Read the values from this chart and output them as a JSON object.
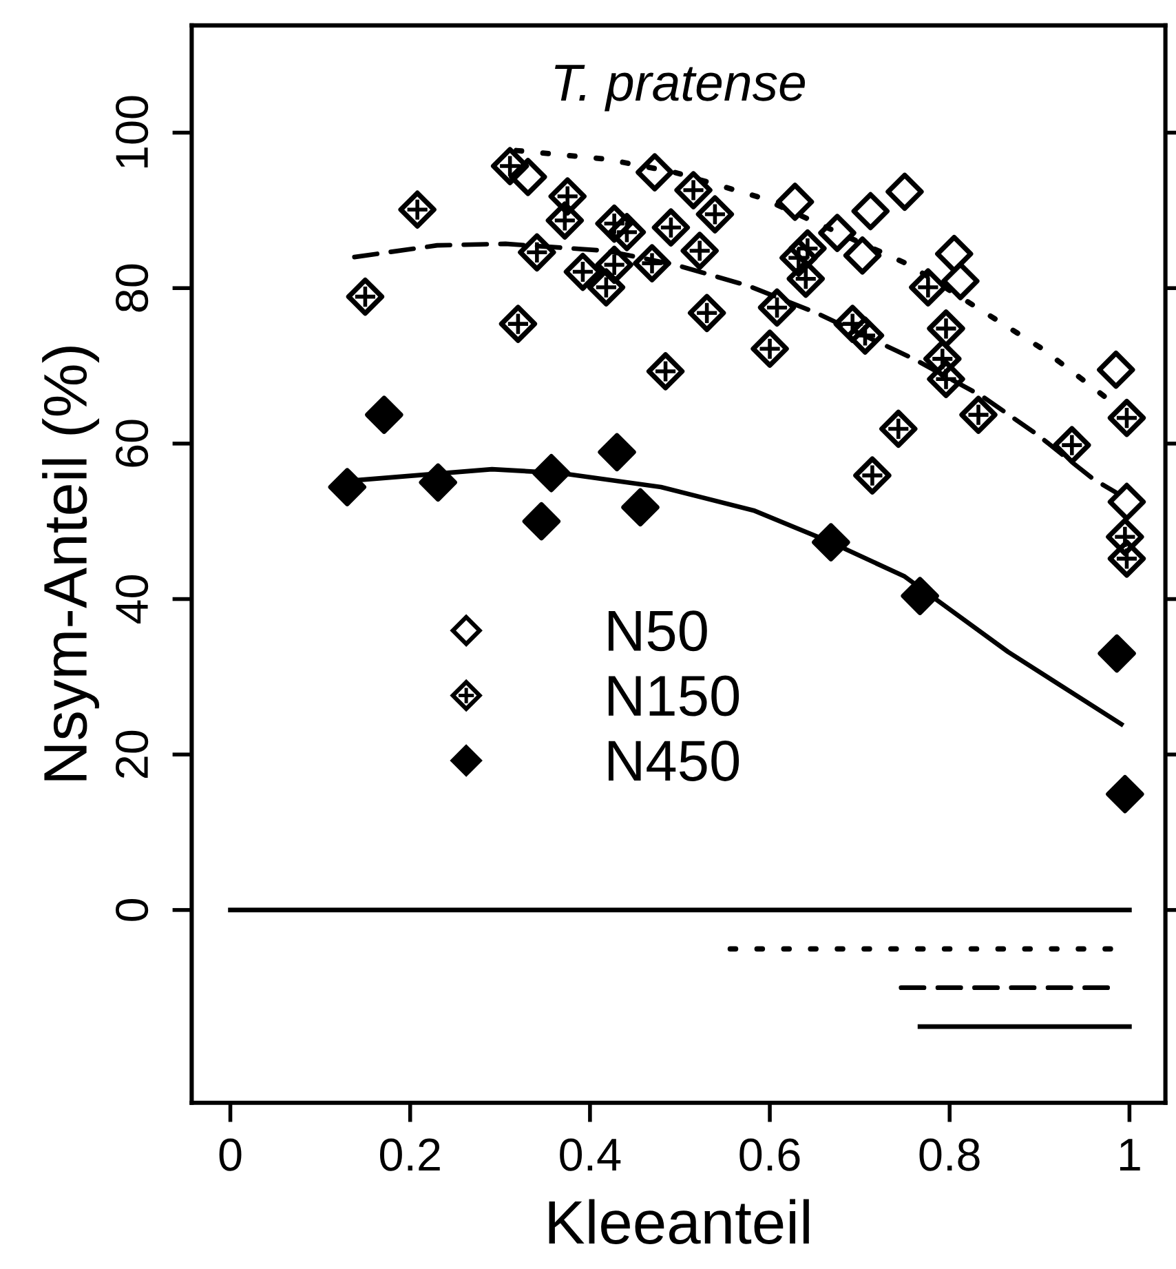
{
  "chart_data": {
    "type": "scatter",
    "title": "T. pratense",
    "xlabel": "Kleeanteil",
    "ylabel": "Nsym-Anteil (%)",
    "xlim": [
      -0.043,
      1.04
    ],
    "ylim": [
      -24.8,
      113.8
    ],
    "xticks": [
      0,
      0.2,
      0.4,
      0.6,
      0.8,
      1
    ],
    "yticks": [
      0,
      20,
      40,
      60,
      80,
      100
    ],
    "grid": false,
    "legend": "left",
    "tick_labels": "xy",
    "series": [
      {
        "name": "N50",
        "marker": "diamond-open",
        "color": "#000000",
        "x": [
          0.331,
          0.472,
          0.628,
          0.675,
          0.712,
          0.703,
          0.75,
          0.805,
          0.812,
          0.985,
          0.997
        ],
        "values": [
          94.3,
          94.9,
          91.1,
          87.1,
          89.9,
          84.2,
          92.4,
          84.4,
          80.9,
          69.5,
          52.5
        ]
      },
      {
        "name": "N150",
        "color": "#000000",
        "x": [
          0.311,
          0.208,
          0.375,
          0.372,
          0.427,
          0.441,
          0.49,
          0.341,
          0.392,
          0.427,
          0.418,
          0.469,
          0.15,
          0.32,
          0.484,
          0.515,
          0.539,
          0.522,
          0.53,
          0.608,
          0.6,
          0.632,
          0.642,
          0.64,
          0.692,
          0.706,
          0.776,
          0.796,
          0.792,
          0.796,
          0.832,
          0.743,
          0.714,
          0.936,
          0.997,
          0.995,
          0.997
        ],
        "values": [
          95.7,
          90.1,
          91.8,
          88.7,
          88.3,
          87.2,
          87.8,
          84.6,
          82.1,
          83.0,
          80.1,
          83.2,
          78.9,
          75.4,
          69.3,
          92.6,
          89.5,
          84.8,
          76.8,
          77.5,
          72.2,
          83.9,
          85.1,
          81.2,
          75.4,
          73.9,
          80.1,
          74.8,
          70.9,
          68.3,
          63.7,
          61.9,
          55.9,
          59.8,
          63.3,
          48.0,
          45.2
        ]
      },
      {
        "name": "N450",
        "marker": "diamond",
        "color": "#000000",
        "x": [
          0.13,
          0.171,
          0.231,
          0.357,
          0.346,
          0.43,
          0.456,
          0.668,
          0.767,
          0.986,
          0.995
        ],
        "values": [
          54.4,
          63.7,
          55.0,
          56.2,
          50.0,
          58.9,
          51.8,
          47.3,
          40.4,
          33.0,
          14.9
        ]
      },
      {
        "type": "line",
        "marker": "none",
        "line_style": "dotted",
        "color": "#000000",
        "x": [
          0.318,
          0.418,
          0.494,
          0.591,
          0.755,
          0.903,
          0.982
        ],
        "values": [
          97.7,
          96.6,
          94.9,
          91.6,
          83.0,
          72.2,
          65.2
        ]
      },
      {
        "type": "line",
        "marker": "none",
        "line_style": "dashed",
        "color": "#000000",
        "x": [
          0.138,
          0.23,
          0.306,
          0.418,
          0.495,
          0.576,
          0.652,
          0.76,
          0.836,
          0.897,
          0.959,
          0.985
        ],
        "values": [
          84.0,
          85.5,
          85.7,
          84.8,
          83.0,
          80.3,
          76.8,
          70.9,
          66.1,
          61.2,
          55.5,
          53.7
        ]
      },
      {
        "type": "line",
        "marker": "none",
        "line_style": "solid",
        "color": "#000000",
        "x": [
          0.142,
          0.291,
          0.367,
          0.479,
          0.582,
          0.668,
          0.75,
          0.865,
          0.991
        ],
        "values": [
          55.3,
          56.7,
          56.2,
          54.4,
          51.4,
          47.3,
          42.9,
          33.2,
          23.9
        ]
      },
      {
        "type": "line",
        "marker": "none",
        "line_style": "solid",
        "color": "#000000",
        "x": [
          0,
          1.0
        ],
        "values": [
          0,
          0
        ]
      },
      {
        "type": "line",
        "marker": "none",
        "line_style": "dotted",
        "color": "#000000",
        "x": [
          0.556,
          0.989
        ],
        "values": [
          -5,
          -5
        ]
      },
      {
        "type": "line",
        "marker": "none",
        "line_style": "dashed",
        "color": "#000000",
        "x": [
          0.746,
          0.985
        ],
        "values": [
          -10,
          -10
        ]
      },
      {
        "type": "line",
        "marker": "none",
        "line_style": "solid",
        "color": "#000000",
        "x": [
          0.767,
          1.0
        ],
        "values": [
          -15,
          -15
        ]
      }
    ]
  }
}
